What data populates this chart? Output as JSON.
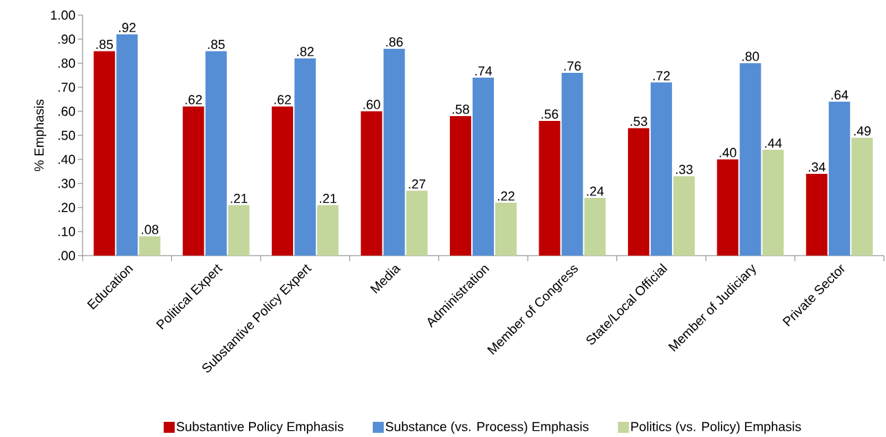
{
  "chart_data": {
    "type": "bar",
    "ylabel": "% Emphasis",
    "categories": [
      "Education",
      "Political Expert",
      "Substantive Policy Expert",
      "Media",
      "Administration",
      "Member of Congress",
      "State/Local Official",
      "Member of Judiciary",
      "Private Sector"
    ],
    "series": [
      {
        "name": "Substantive Policy Emphasis",
        "color": "#c00000",
        "values": [
          0.85,
          0.62,
          0.62,
          0.6,
          0.58,
          0.56,
          0.53,
          0.4,
          0.34
        ],
        "value_labels": [
          ".85",
          ".62",
          ".62",
          ".60",
          ".58",
          ".56",
          ".53",
          ".40",
          ".34"
        ]
      },
      {
        "name": "Substance (vs. Process) Emphasis",
        "color": "#558ed5",
        "values": [
          0.92,
          0.85,
          0.82,
          0.86,
          0.74,
          0.76,
          0.72,
          0.8,
          0.64
        ],
        "value_labels": [
          ".92",
          ".85",
          ".82",
          ".86",
          ".74",
          ".76",
          ".72",
          ".80",
          ".64"
        ]
      },
      {
        "name": "Politics (vs. Policy) Emphasis",
        "color": "#c3d69b",
        "values": [
          0.08,
          0.21,
          0.21,
          0.27,
          0.22,
          0.24,
          0.33,
          0.44,
          0.49
        ],
        "value_labels": [
          ".08",
          ".21",
          ".21",
          ".27",
          ".22",
          ".24",
          ".33",
          ".44",
          ".49"
        ]
      }
    ],
    "ylim": [
      0,
      1
    ],
    "yticks": [
      {
        "value": 0,
        "label": ".00"
      },
      {
        "value": 0.1,
        "label": ".10"
      },
      {
        "value": 0.2,
        "label": ".20"
      },
      {
        "value": 0.3,
        "label": ".30"
      },
      {
        "value": 0.4,
        "label": ".40"
      },
      {
        "value": 0.5,
        "label": ".50"
      },
      {
        "value": 0.6,
        "label": ".60"
      },
      {
        "value": 0.7,
        "label": ".70"
      },
      {
        "value": 0.8,
        "label": ".80"
      },
      {
        "value": 0.9,
        "label": ".90"
      },
      {
        "value": 1,
        "label": "1.00"
      }
    ],
    "legend": "bottom"
  }
}
